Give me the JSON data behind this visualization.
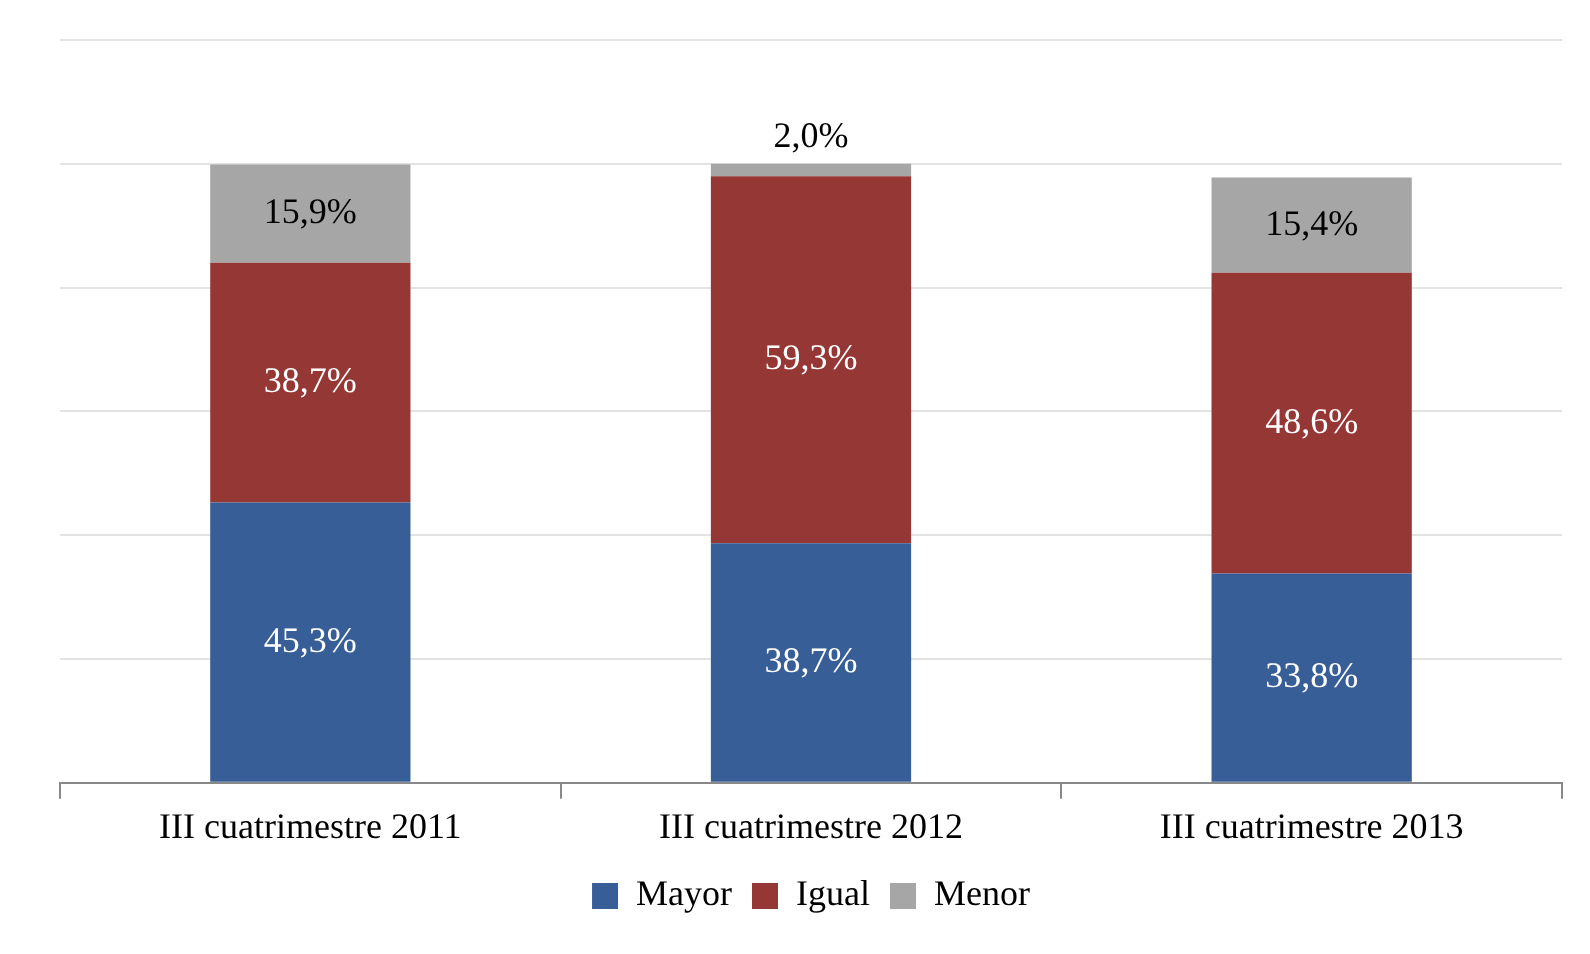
{
  "chart_data": {
    "type": "bar",
    "stacked": true,
    "categories": [
      "III cuatrimestre 2011",
      "III cuatrimestre 2012",
      "III cuatrimestre 2013"
    ],
    "series": [
      {
        "name": "Mayor",
        "color": "#375e97",
        "values": [
          45.3,
          38.7,
          33.8
        ],
        "value_labels": [
          "45,3%",
          "38,7%",
          "33,8%"
        ]
      },
      {
        "name": "Igual",
        "color": "#953735",
        "values": [
          38.7,
          59.3,
          48.6
        ],
        "value_labels": [
          "38,7%",
          "59,3%",
          "48,6%"
        ]
      },
      {
        "name": "Menor",
        "color": "#a6a6a6",
        "values": [
          15.9,
          2.0,
          15.4
        ],
        "value_labels": [
          "15,9%",
          "2,0%",
          "15,4%"
        ]
      }
    ],
    "ylim": [
      0,
      120
    ],
    "yticks": [
      {
        "value": 0,
        "label": null
      },
      {
        "value": 20,
        "label": null
      },
      {
        "value": 40,
        "label": null
      },
      {
        "value": 60,
        "label": null
      },
      {
        "value": 80,
        "label": null
      },
      {
        "value": 100,
        "label": null
      },
      {
        "value": 120,
        "label": null
      }
    ],
    "grid": "y",
    "tick_labels": "x",
    "legend": "bottom"
  }
}
